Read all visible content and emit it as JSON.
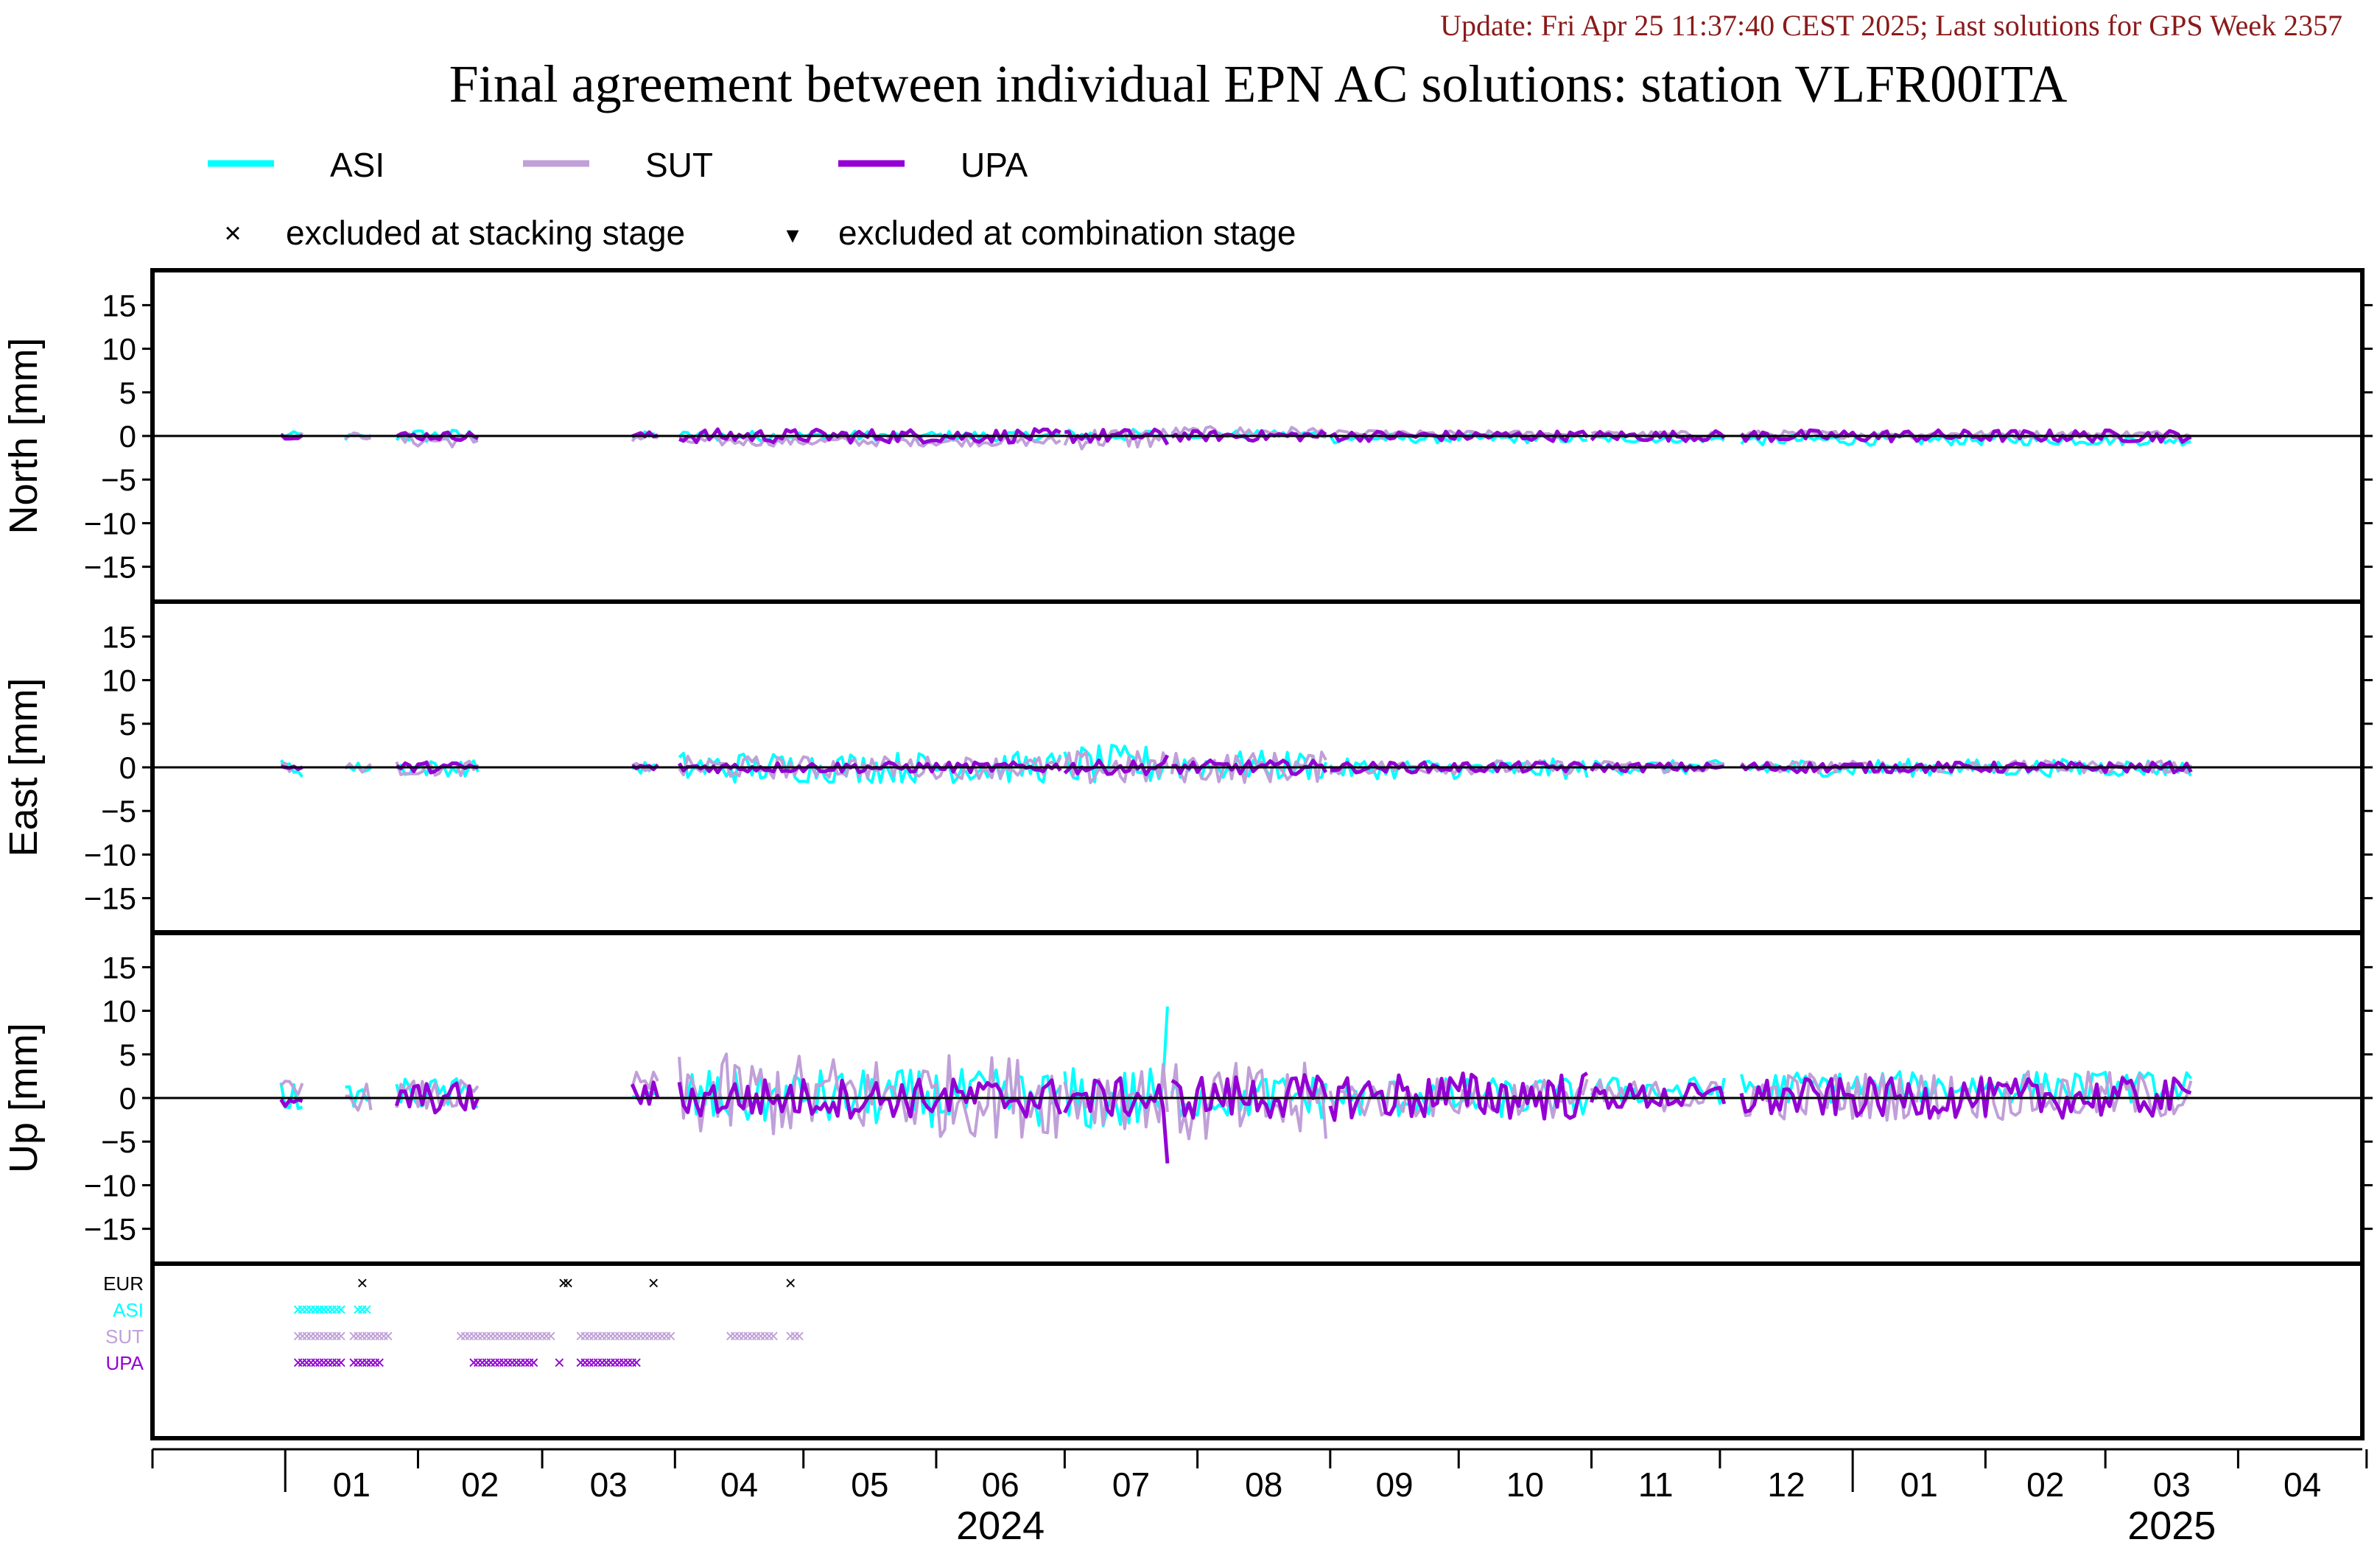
{
  "header": {
    "update_text": "Update: Fri Apr 25 11:37:40 CEST 2025; Last solutions for GPS Week 2357",
    "title": "Final agreement between individual EPN AC solutions: station VLFR00ITA"
  },
  "legend": {
    "series": [
      {
        "name": "ASI",
        "color": "#00ffff"
      },
      {
        "name": "SUT",
        "color": "#c0a0d8"
      },
      {
        "name": "UPA",
        "color": "#9400d3"
      }
    ],
    "markers": [
      {
        "symbol": "×",
        "label": "excluded at stacking stage"
      },
      {
        "symbol": "▾",
        "label": "excluded at combination stage"
      }
    ]
  },
  "chart_data": {
    "type": "line",
    "panels": [
      {
        "ylabel": "North [mm]"
      },
      {
        "ylabel": "East [mm]"
      },
      {
        "ylabel": "Up [mm]"
      }
    ],
    "ylim": [
      -19,
      19
    ],
    "yticks": [
      15,
      10,
      5,
      0,
      -5,
      -10,
      -15
    ],
    "xlim": [
      "2023-12-01",
      "2025-04-30"
    ],
    "x_month_labels": [
      "01",
      "02",
      "03",
      "04",
      "05",
      "06",
      "07",
      "08",
      "09",
      "10",
      "11",
      "12",
      "01",
      "02",
      "03",
      "04"
    ],
    "year_labels": [
      {
        "label": "2024",
        "month_index": 5.5
      },
      {
        "label": "2025",
        "month_index": 14.5
      }
    ],
    "series": [
      {
        "name": "ASI",
        "color": "#00ffff",
        "segments": [
          {
            "start": "2023-12-31",
            "end": "2024-01-05",
            "north": [
              0.3,
              0.1
            ],
            "east": [
              -1.0,
              0.5
            ],
            "up": [
              1.8,
              -1.0
            ]
          },
          {
            "start": "2024-01-15",
            "end": "2024-01-21",
            "north": [
              -0.2,
              -0.5
            ],
            "east": [
              -0.5,
              0.2
            ],
            "up": [
              -0.5,
              1.2
            ]
          },
          {
            "start": "2024-01-27",
            "end": "2024-02-15",
            "north": [
              0.5,
              -0.5
            ],
            "east": [
              -0.8,
              0.4
            ],
            "up": [
              2.5,
              -0.5
            ]
          },
          {
            "start": "2024-03-22",
            "end": "2024-03-28",
            "north": [
              -0.2,
              0.2
            ],
            "east": [
              -0.5,
              0.3
            ],
            "up": [
              -0.6,
              0.8
            ]
          },
          {
            "start": "2024-04-02",
            "end": "2024-06-30",
            "north": [
              0.3,
              -0.3
            ],
            "east": [
              -1.5,
              1.5
            ],
            "up": [
              -3,
              3
            ]
          },
          {
            "start": "2024-07-01",
            "end": "2024-07-25",
            "north": [
              -0.2,
              0.6
            ],
            "east": [
              -1.5,
              2.5
            ],
            "up": [
              -4,
              3
            ]
          },
          {
            "start": "2024-07-26",
            "end": "2024-08-31",
            "north": [
              0.5,
              0.2
            ],
            "east": [
              -1,
              1.8
            ],
            "up": [
              -2,
              2.5
            ]
          },
          {
            "start": "2024-09-01",
            "end": "2024-10-31",
            "north": [
              -0.3,
              -0.8
            ],
            "east": [
              -1.2,
              0.5
            ],
            "up": [
              -2,
              2
            ]
          },
          {
            "start": "2024-11-01",
            "end": "2024-12-02",
            "north": [
              -0.8,
              -0.5
            ],
            "east": [
              -0.5,
              0.5
            ],
            "up": [
              0.5,
              3
            ]
          },
          {
            "start": "2024-12-06",
            "end": "2025-03-21",
            "north": [
              -0.5,
              -1.2
            ],
            "east": [
              -0.8,
              0.6
            ],
            "up": [
              1,
              4
            ]
          }
        ],
        "spike": {
          "date": "2024-07-25",
          "up": 10.5
        }
      },
      {
        "name": "SUT",
        "color": "#c0a0d8",
        "segments": [
          {
            "start": "2023-12-31",
            "end": "2024-01-05",
            "north": [
              0.2,
              0.0
            ],
            "east": [
              0.3,
              -0.2
            ],
            "up": [
              2.5,
              0.5
            ]
          },
          {
            "start": "2024-01-15",
            "end": "2024-01-21",
            "north": [
              -0.1,
              0.1
            ],
            "east": [
              0.2,
              -0.3
            ],
            "up": [
              1.5,
              -1.0
            ]
          },
          {
            "start": "2024-01-27",
            "end": "2024-02-15",
            "north": [
              -1.5,
              -0.5
            ],
            "east": [
              -0.8,
              0.3
            ],
            "up": [
              -1,
              2
            ]
          },
          {
            "start": "2024-03-22",
            "end": "2024-03-28",
            "north": [
              -0.6,
              0.3
            ],
            "east": [
              0.2,
              -0.2
            ],
            "up": [
              4.5,
              2.5
            ]
          },
          {
            "start": "2024-04-02",
            "end": "2024-06-30",
            "north": [
              -1.5,
              -1.0
            ],
            "east": [
              -1,
              1
            ],
            "up": [
              -4,
              5
            ]
          },
          {
            "start": "2024-07-01",
            "end": "2024-07-25",
            "north": [
              -1.5,
              0.5
            ],
            "east": [
              -2,
              1.5
            ],
            "up": [
              -3,
              4
            ]
          },
          {
            "start": "2024-07-26",
            "end": "2024-08-31",
            "north": [
              0.5,
              1.2
            ],
            "east": [
              -1.5,
              1.5
            ],
            "up": [
              -6,
              3
            ]
          },
          {
            "start": "2024-09-01",
            "end": "2024-10-31",
            "north": [
              0.2,
              0.5
            ],
            "east": [
              -0.5,
              0.5
            ],
            "up": [
              -2,
              2
            ]
          },
          {
            "start": "2024-11-01",
            "end": "2024-12-02",
            "north": [
              0.2,
              0.4
            ],
            "east": [
              -0.3,
              0.5
            ],
            "up": [
              -1,
              2
            ]
          },
          {
            "start": "2024-12-06",
            "end": "2025-03-21",
            "north": [
              0.2,
              0.5
            ],
            "east": [
              -0.3,
              0.5
            ],
            "up": [
              -2,
              3
            ]
          }
        ]
      },
      {
        "name": "UPA",
        "color": "#9400d3",
        "segments": [
          {
            "start": "2023-12-31",
            "end": "2024-01-05",
            "north": [
              0.1,
              0.0
            ],
            "east": [
              0.1,
              0.0
            ],
            "up": [
              -1.0,
              -1.5
            ]
          },
          {
            "start": "2024-01-27",
            "end": "2024-02-15",
            "north": [
              0.2,
              -0.2
            ],
            "east": [
              0.3,
              -0.3
            ],
            "up": [
              1.5,
              -1.5
            ]
          },
          {
            "start": "2024-03-22",
            "end": "2024-03-28",
            "north": [
              0.2,
              -0.1
            ],
            "east": [
              0.1,
              -0.1
            ],
            "up": [
              2.0,
              -0.5
            ]
          },
          {
            "start": "2024-04-02",
            "end": "2024-06-30",
            "north": [
              0.5,
              -0.5
            ],
            "east": [
              0.3,
              -0.3
            ],
            "up": [
              -2,
              2
            ]
          },
          {
            "start": "2024-07-01",
            "end": "2024-07-25",
            "north": [
              0.5,
              -0.5
            ],
            "east": [
              0.5,
              -0.5
            ],
            "up": [
              -2,
              2
            ]
          },
          {
            "start": "2024-07-26",
            "end": "2024-08-31",
            "north": [
              0.3,
              -0.3
            ],
            "east": [
              0.5,
              -0.5
            ],
            "up": [
              -2,
              2.5
            ]
          },
          {
            "start": "2024-09-01",
            "end": "2024-10-31",
            "north": [
              0.3,
              -0.3
            ],
            "east": [
              0.3,
              -0.3
            ],
            "up": [
              -2,
              3
            ]
          },
          {
            "start": "2024-11-01",
            "end": "2024-12-02",
            "north": [
              0.3,
              -0.3
            ],
            "east": [
              0.2,
              -0.2
            ],
            "up": [
              -1,
              1.5
            ]
          },
          {
            "start": "2024-12-06",
            "end": "2025-03-21",
            "north": [
              0.4,
              -0.4
            ],
            "east": [
              0.3,
              -0.3
            ],
            "up": [
              -2,
              2
            ]
          }
        ],
        "spike": {
          "date": "2024-07-25",
          "up": -7.5
        }
      }
    ],
    "exclusions": {
      "rows": [
        {
          "label": "EUR",
          "color": "#000000",
          "ranges": [
            [
              "2024-01-19",
              "2024-01-19"
            ],
            [
              "2024-03-06",
              "2024-03-07"
            ],
            [
              "2024-03-27",
              "2024-03-27"
            ],
            [
              "2024-04-28",
              "2024-04-28"
            ]
          ]
        },
        {
          "label": "ASI",
          "color": "#00ffff",
          "ranges": [
            [
              "2024-01-04",
              "2024-01-14"
            ],
            [
              "2024-01-18",
              "2024-01-20"
            ]
          ]
        },
        {
          "label": "SUT",
          "color": "#c0a0d8",
          "ranges": [
            [
              "2024-01-04",
              "2024-01-14"
            ],
            [
              "2024-01-17",
              "2024-01-25"
            ],
            [
              "2024-02-11",
              "2024-03-03"
            ],
            [
              "2024-03-10",
              "2024-03-31"
            ],
            [
              "2024-04-14",
              "2024-04-24"
            ],
            [
              "2024-04-28",
              "2024-04-30"
            ]
          ]
        },
        {
          "label": "UPA",
          "color": "#9400d3",
          "ranges": [
            [
              "2024-01-04",
              "2024-01-14"
            ],
            [
              "2024-01-17",
              "2024-01-23"
            ],
            [
              "2024-02-14",
              "2024-02-28"
            ],
            [
              "2024-03-05",
              "2024-03-05"
            ],
            [
              "2024-03-10",
              "2024-03-23"
            ]
          ]
        }
      ]
    }
  }
}
